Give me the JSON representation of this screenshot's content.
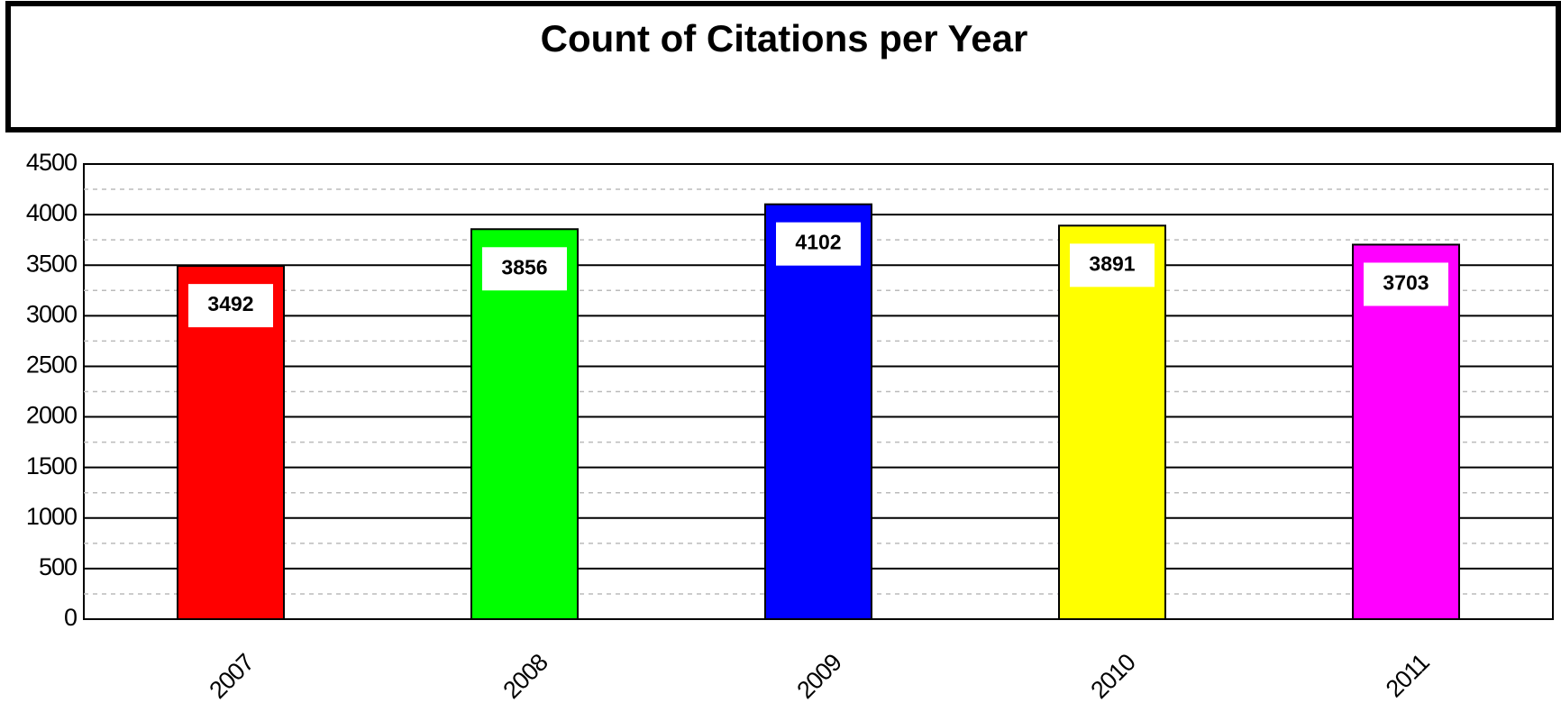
{
  "chart_data": {
    "type": "bar",
    "title": "Count of Citations per Year",
    "categories": [
      "2007",
      "2008",
      "2009",
      "2010",
      "2011"
    ],
    "values": [
      3492,
      3856,
      4102,
      3891,
      3703
    ],
    "colors": [
      "#ff0000",
      "#00ff00",
      "#0000ff",
      "#ffff00",
      "#ff00ff"
    ],
    "ylim": [
      0,
      4500
    ],
    "yticks": [
      0,
      500,
      1000,
      1500,
      2000,
      2500,
      3000,
      3500,
      4000,
      4500
    ],
    "minor_yticks": [
      250,
      750,
      1250,
      1750,
      2250,
      2750,
      3250,
      3750,
      4250
    ],
    "grid": true
  }
}
